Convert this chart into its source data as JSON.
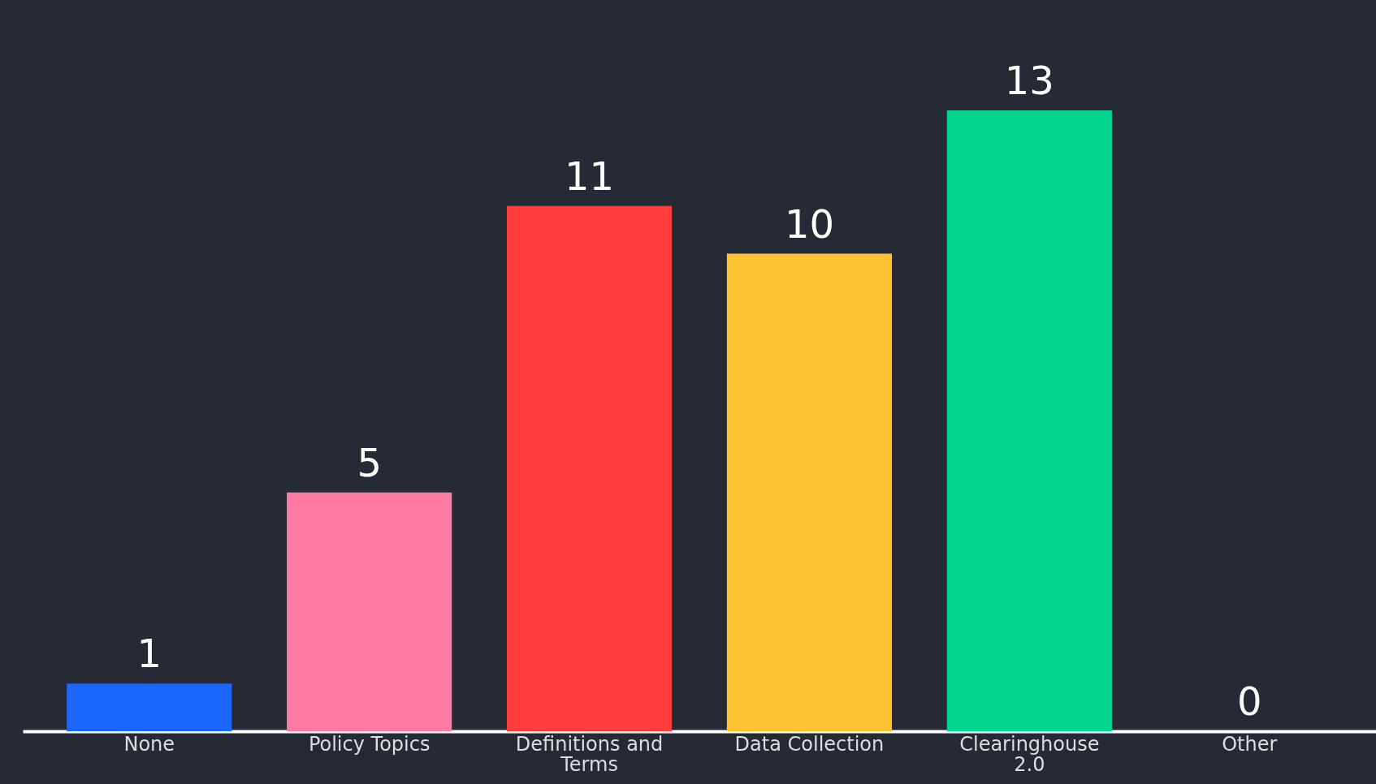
{
  "chart_data": {
    "type": "bar",
    "categories": [
      "None",
      "Policy Topics",
      "Definitions and Terms",
      "Data Collection",
      "Clearinghouse 2.0",
      "Other"
    ],
    "values": [
      1,
      5,
      11,
      10,
      13,
      0
    ],
    "colors": [
      "#1a66ff",
      "#ff7aa2",
      "#ff3d3d",
      "#ffc233",
      "#00d68f",
      "#888888"
    ],
    "data_labels": true,
    "legend": false,
    "grid": false
  }
}
